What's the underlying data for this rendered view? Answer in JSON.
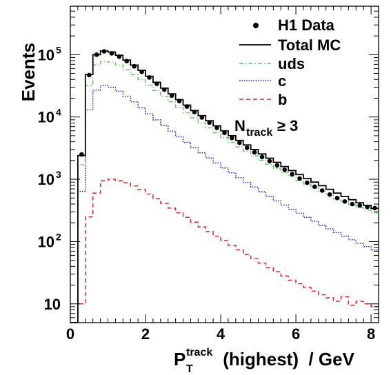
{
  "chart_data": {
    "type": "histogram",
    "xlabel": "P",
    "xlabel_superscript": "track",
    "xlabel_subscript": "T",
    "xlabel_rest": " (highest)  / GeV",
    "ylabel": "Events",
    "xlim": [
      0,
      8.2
    ],
    "ylim": [
      5,
      600000
    ],
    "yscale": "log",
    "x_ticks": [
      "0",
      "2",
      "4",
      "6",
      "8"
    ],
    "y_ticks": [
      {
        "base": "10",
        "exp": ""
      },
      {
        "base": "10",
        "exp": "2"
      },
      {
        "base": "10",
        "exp": "3"
      },
      {
        "base": "10",
        "exp": "4"
      },
      {
        "base": "10",
        "exp": "5"
      }
    ],
    "annotation": {
      "base": "N",
      "sub": "track",
      "rest": "≥ 3"
    },
    "legend": [
      {
        "label": "H1 Data",
        "style": "marker",
        "color": "#000000"
      },
      {
        "label": "Total MC",
        "style": "solid",
        "color": "#000000"
      },
      {
        "label": "uds",
        "style": "dashdot",
        "color": "#55cc55"
      },
      {
        "label": "c",
        "style": "dotted",
        "color": "#2222ee"
      },
      {
        "label": "b",
        "style": "dashed",
        "color": "#ee2222"
      }
    ],
    "bin_edges_x": [
      0,
      0.2,
      0.4,
      0.6,
      0.8,
      1.0,
      1.2,
      1.4,
      1.6,
      1.8,
      2.0,
      2.2,
      2.4,
      2.6,
      2.8,
      3.0,
      3.2,
      3.4,
      3.6,
      3.8,
      4.0,
      4.2,
      4.4,
      4.6,
      4.8,
      5.0,
      5.2,
      5.4,
      5.6,
      5.8,
      6.0,
      6.2,
      6.4,
      6.6,
      6.8,
      7.0,
      7.2,
      7.4,
      7.6,
      7.8,
      8.0,
      8.2
    ],
    "series": [
      {
        "name": "Total MC",
        "values": [
          5,
          2400,
          48000,
          100000,
          115000,
          110000,
          98000,
          82000,
          68000,
          56000,
          45000,
          36000,
          29000,
          23500,
          19000,
          15500,
          12700,
          10500,
          8700,
          7200,
          6000,
          5000,
          4200,
          3550,
          3000,
          2550,
          2180,
          1870,
          1600,
          1380,
          1190,
          1030,
          900,
          790,
          690,
          600,
          530,
          470,
          420,
          380,
          340
        ]
      },
      {
        "name": "uds",
        "values": [
          5,
          1700,
          32000,
          68000,
          78000,
          76000,
          68000,
          57000,
          48000,
          40000,
          32500,
          26500,
          21500,
          17500,
          14300,
          11700,
          9700,
          8000,
          6700,
          5600,
          4650,
          3900,
          3300,
          2800,
          2370,
          2020,
          1730,
          1490,
          1290,
          1110,
          960,
          840,
          730,
          640,
          560,
          490,
          440,
          390,
          350,
          320,
          290
        ]
      },
      {
        "name": "c",
        "values": [
          5,
          640,
          13000,
          27000,
          32000,
          30000,
          26000,
          21500,
          17500,
          14000,
          11200,
          9000,
          7300,
          5900,
          4800,
          3900,
          3200,
          2650,
          2200,
          1830,
          1520,
          1270,
          1060,
          890,
          750,
          630,
          530,
          450,
          385,
          330,
          285,
          245,
          212,
          183,
          160,
          140,
          122,
          107,
          94,
          83,
          73
        ]
      },
      {
        "name": "b",
        "values": [
          5,
          10,
          250,
          600,
          950,
          1000,
          950,
          880,
          780,
          680,
          580,
          490,
          410,
          345,
          290,
          245,
          205,
          172,
          145,
          122,
          103,
          87,
          74,
          62,
          53,
          45,
          38,
          33,
          28,
          24,
          21,
          18.5,
          16,
          14,
          12.5,
          11,
          13,
          9.5,
          11,
          10,
          9
        ]
      },
      {
        "name": "H1 Data",
        "values": [
          0,
          2500,
          47000,
          100000,
          113000,
          105000,
          93000,
          79000,
          65000,
          53000,
          43000,
          34000,
          27500,
          22000,
          18000,
          14700,
          12000,
          9800,
          8100,
          6700,
          5550,
          4600,
          3850,
          3200,
          2700,
          2280,
          1950,
          1670,
          1420,
          1210,
          1030,
          880,
          760,
          660,
          570,
          500,
          440,
          400,
          380,
          360,
          345
        ]
      }
    ]
  }
}
